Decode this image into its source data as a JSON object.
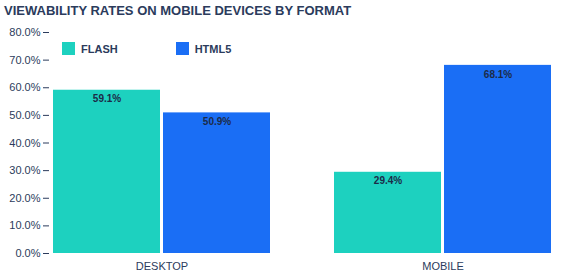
{
  "chart_data": {
    "type": "bar",
    "title": "VIEWABILITY RATES ON MOBILE DEVICES BY FORMAT",
    "categories": [
      "DESKTOP",
      "MOBILE"
    ],
    "series": [
      {
        "name": "FLASH",
        "color": "#1dd1bf",
        "values": [
          59.1,
          29.4
        ],
        "value_labels": [
          "59.1%",
          "29.4%"
        ]
      },
      {
        "name": "HTML5",
        "color": "#1a6ef5",
        "values": [
          50.9,
          68.1
        ],
        "value_labels": [
          "50.9%",
          "68.1%"
        ]
      }
    ],
    "ylim": [
      0,
      80
    ],
    "yticks": [
      {
        "value": 0,
        "label": "0.0%"
      },
      {
        "value": 10,
        "label": "10.0%"
      },
      {
        "value": 20,
        "label": "20.0%"
      },
      {
        "value": 30,
        "label": "30.0%"
      },
      {
        "value": 40,
        "label": "40.0%"
      },
      {
        "value": 50,
        "label": "50.0%"
      },
      {
        "value": 60,
        "label": "60.0%"
      },
      {
        "value": 70,
        "label": "70.0%"
      },
      {
        "value": 80,
        "label": "80.0%"
      }
    ],
    "grid": false,
    "legend": "top-left",
    "data_labels": true
  }
}
